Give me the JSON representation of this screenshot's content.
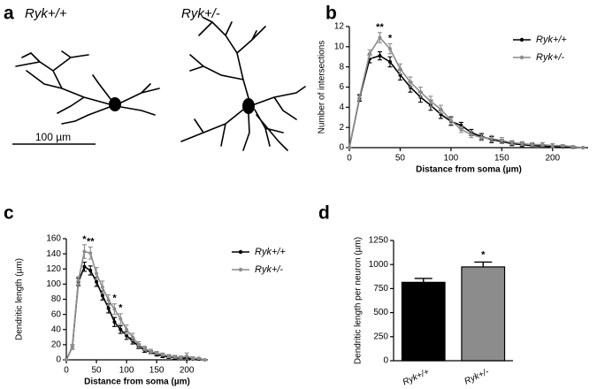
{
  "figure_a": {
    "panel_label": "a",
    "labels": [
      "Ryk+/+",
      "Ryk+/-"
    ],
    "scale_bar": "100 µm"
  },
  "chart_data": [
    {
      "type": "line",
      "panel_label": "b",
      "xlabel": "Distance from soma (µm)",
      "ylabel": "Number of intersections",
      "x": [
        0,
        10,
        20,
        30,
        40,
        50,
        60,
        70,
        80,
        90,
        100,
        110,
        120,
        130,
        140,
        150,
        160,
        170,
        180,
        190,
        200,
        210,
        220,
        230
      ],
      "series": [
        {
          "name": "Ryk+/+",
          "color": "#000000",
          "values": [
            0,
            4.9,
            8.8,
            9.1,
            8.5,
            7.2,
            6.0,
            5.0,
            4.2,
            3.3,
            2.6,
            2.2,
            1.5,
            1.1,
            0.8,
            0.6,
            0.4,
            0.3,
            0.2,
            0.15,
            0.1,
            0.1,
            0.05,
            0
          ],
          "errors": [
            0,
            0.3,
            0.4,
            0.4,
            0.5,
            0.5,
            0.5,
            0.5,
            0.5,
            0.4,
            0.4,
            0.3,
            0.3,
            0.3,
            0.3,
            0.2,
            0.2,
            0.2,
            0.2,
            0.1,
            0.1,
            0.1,
            0.1,
            0
          ]
        },
        {
          "name": "Ryk+/-",
          "color": "#8c8c8c",
          "values": [
            0,
            5.0,
            9.3,
            10.9,
            9.8,
            7.8,
            6.5,
            5.5,
            4.6,
            3.8,
            2.7,
            1.8,
            1.3,
            1.0,
            0.9,
            0.7,
            0.5,
            0.4,
            0.3,
            0.3,
            0.2,
            0.2,
            0.1,
            0
          ],
          "errors": [
            0,
            0.3,
            0.4,
            0.5,
            0.5,
            0.5,
            0.5,
            0.5,
            0.5,
            0.4,
            0.4,
            0.3,
            0.3,
            0.3,
            0.3,
            0.3,
            0.2,
            0.2,
            0.2,
            0.2,
            0.2,
            0.1,
            0.1,
            0
          ]
        }
      ],
      "annotations": [
        {
          "x": 30,
          "text": "**"
        },
        {
          "x": 40,
          "text": "*"
        }
      ],
      "xlim": [
        0,
        235
      ],
      "xticks": [
        0,
        50,
        100,
        150,
        200
      ],
      "ylim": [
        0,
        12
      ],
      "yticks": [
        0,
        2,
        4,
        6,
        8,
        10,
        12
      ],
      "legend": "upper right"
    },
    {
      "type": "line",
      "panel_label": "c",
      "xlabel": "Distance from soma (µm)",
      "ylabel": "Dendritic length (µm)",
      "x": [
        0,
        10,
        20,
        30,
        40,
        50,
        60,
        70,
        80,
        90,
        100,
        110,
        120,
        130,
        140,
        150,
        160,
        170,
        180,
        190,
        200,
        210,
        220,
        230
      ],
      "series": [
        {
          "name": "Ryk+/+",
          "color": "#000000",
          "values": [
            0,
            17,
            103,
            123,
            118,
            103,
            85,
            68,
            50,
            40,
            32,
            25,
            18,
            13,
            10,
            7,
            5,
            4,
            3,
            2,
            2,
            1,
            1,
            0
          ],
          "errors": [
            0,
            3,
            5,
            6,
            6,
            6,
            6,
            6,
            6,
            5,
            5,
            4,
            3,
            3,
            2,
            2,
            2,
            2,
            2,
            1,
            1,
            1,
            1,
            0
          ]
        },
        {
          "name": "Ryk+/-",
          "color": "#8c8c8c",
          "values": [
            0,
            17,
            105,
            143,
            141,
            114,
            96,
            79,
            67,
            54,
            40,
            30,
            20,
            15,
            11,
            9,
            7,
            5,
            4,
            3,
            5,
            2,
            2,
            0
          ],
          "errors": [
            0,
            3,
            5,
            9,
            8,
            8,
            8,
            7,
            7,
            7,
            6,
            5,
            4,
            3,
            3,
            2,
            2,
            2,
            2,
            2,
            4,
            2,
            1,
            0
          ]
        }
      ],
      "annotations": [
        {
          "x": 30,
          "text": "*"
        },
        {
          "x": 40,
          "text": "**"
        },
        {
          "x": 80,
          "text": "*"
        },
        {
          "x": 90,
          "text": "*"
        }
      ],
      "xlim": [
        0,
        235
      ],
      "xticks": [
        0,
        50,
        100,
        150,
        200
      ],
      "ylim": [
        0,
        160
      ],
      "yticks": [
        0,
        20,
        40,
        60,
        80,
        100,
        120,
        140,
        160
      ],
      "legend": "upper right"
    },
    {
      "type": "bar",
      "panel_label": "d",
      "ylabel": "Dendritic length per neuron (µm)",
      "categories": [
        "Ryk+/+",
        "Ryk+/-"
      ],
      "values": [
        815,
        975
      ],
      "errors": [
        40,
        50
      ],
      "colors": [
        "#000000",
        "#8c8c8c"
      ],
      "annotations": [
        {
          "category": 1,
          "text": "*"
        }
      ],
      "ylim": [
        0,
        1250
      ],
      "yticks": [
        0,
        250,
        500,
        750,
        1000,
        1250
      ]
    }
  ]
}
